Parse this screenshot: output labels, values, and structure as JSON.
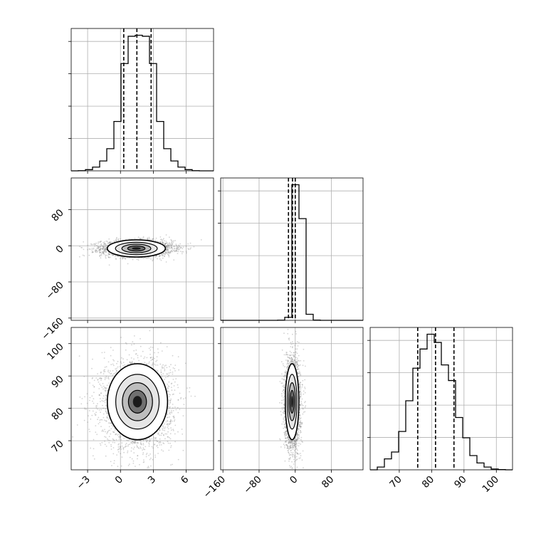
{
  "chart_data": {
    "type": "corner",
    "title": "",
    "grid": true,
    "line_color": "#000000",
    "point_color": "#808080",
    "params": [
      {
        "range": [
          -4.5,
          8.5
        ],
        "ticks": [
          -3,
          0,
          3,
          6
        ],
        "tick_labels": [
          "−3",
          "0",
          "3",
          "6"
        ],
        "quantiles": [
          0.3,
          1.5,
          2.8
        ]
      },
      {
        "range": [
          -165,
          150
        ],
        "ticks": [
          -160,
          -80,
          0,
          80
        ],
        "tick_labels": [
          "−160",
          "−80",
          "0",
          "80"
        ],
        "quantiles": [
          -15,
          -6,
          0
        ]
      },
      {
        "range": [
          61,
          105
        ],
        "ticks": [
          70,
          80,
          90,
          100
        ],
        "tick_labels": [
          "70",
          "80",
          "90",
          "100"
        ],
        "quantiles": [
          75.7,
          81.2,
          86.9
        ]
      }
    ],
    "histograms": [
      {
        "param": 0,
        "bin_edges": [
          -4.5,
          -3.85,
          -3.2,
          -2.55,
          -1.9,
          -1.25,
          -0.6,
          0.05,
          0.7,
          1.35,
          2.0,
          2.65,
          3.3,
          3.95,
          4.6,
          5.25,
          5.9,
          6.55,
          7.2,
          7.85,
          8.5
        ],
        "counts": [
          0,
          0.5,
          3.5,
          11,
          29,
          65,
          145,
          315,
          395,
          398,
          395,
          315,
          145,
          65,
          29,
          11,
          3.5,
          0.5,
          0,
          0
        ]
      },
      {
        "param": 1,
        "bin_edges": [
          -165,
          -149.25,
          -133.5,
          -117.75,
          -102,
          -86.25,
          -70.5,
          -54.75,
          -39,
          -23.25,
          -7.5,
          8.25,
          24,
          39.75,
          55.5,
          71.25,
          87,
          102.75,
          118.5,
          134.25,
          150
        ],
        "counts": [
          0,
          0,
          0,
          0,
          0,
          0,
          0,
          0,
          2,
          40,
          1800,
          1350,
          80,
          3,
          0,
          0,
          0,
          0,
          0,
          0
        ]
      },
      {
        "param": 2,
        "bin_edges": [
          61,
          63.2,
          65.4,
          67.6,
          69.8,
          72,
          74.2,
          76.4,
          78.6,
          80.8,
          83,
          85.2,
          87.4,
          89.6,
          91.8,
          94,
          96.2,
          98.4,
          100.6,
          102.8,
          105
        ],
        "counts": [
          0,
          10,
          40,
          65,
          140,
          252,
          371,
          441,
          495,
          465,
          383,
          326,
          191,
          117,
          52,
          25,
          10,
          3,
          1,
          0
        ]
      }
    ],
    "pairs": [
      {
        "x_param": 0,
        "y_param": 1,
        "mean": [
          1.5,
          -6
        ],
        "sd": [
          1.3,
          7
        ],
        "n_points": 3000,
        "extent": [
          [
            -1.2,
            -25
          ],
          [
            4.1,
            13
          ]
        ]
      },
      {
        "x_param": 0,
        "y_param": 2,
        "mean": [
          1.5,
          81.3
        ],
        "sd": [
          1.3,
          5.5
        ],
        "n_points": 3000,
        "extent": [
          [
            -1.2,
            70.3
          ],
          [
            4.3,
            93.8
          ]
        ]
      },
      {
        "x_param": 1,
        "y_param": 2,
        "mean": [
          -6,
          81.3
        ],
        "sd": [
          7,
          5.5
        ],
        "n_points": 3000,
        "extent": [
          [
            -22,
            70.3
          ],
          [
            8,
            93.8
          ]
        ]
      }
    ]
  }
}
